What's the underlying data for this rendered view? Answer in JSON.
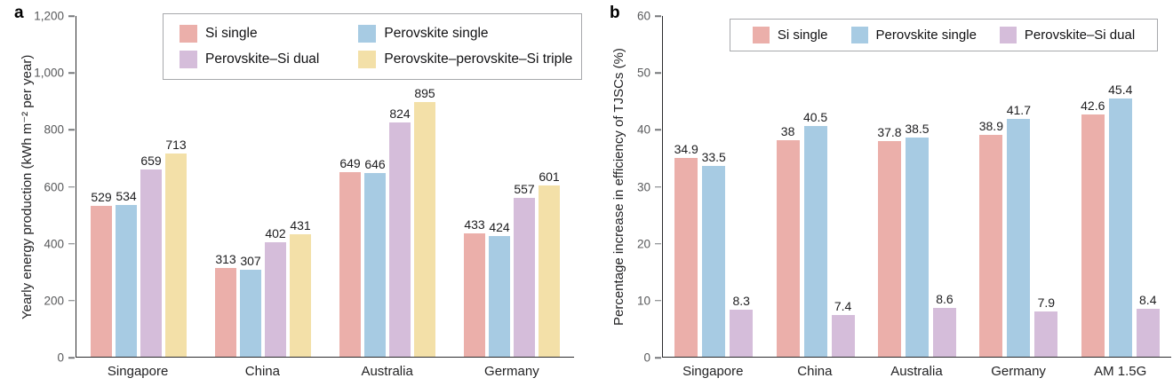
{
  "chart_data": [
    {
      "type": "bar",
      "panel_label": "a",
      "title": "",
      "xlabel": "",
      "ylabel": "Yearly energy production (kWh m⁻² per year)",
      "categories": [
        "Singapore",
        "China",
        "Australia",
        "Germany"
      ],
      "series": [
        {
          "name": "Si single",
          "color": "#EBAFAA",
          "values": [
            529,
            313,
            649,
            433
          ]
        },
        {
          "name": "Perovskite single",
          "color": "#A7CBE3",
          "values": [
            534,
            307,
            646,
            424
          ]
        },
        {
          "name": "Perovskite–Si dual",
          "color": "#D5BDDA",
          "values": [
            659,
            402,
            824,
            557
          ]
        },
        {
          "name": "Perovskite–perovskite–Si triple",
          "color": "#F3E0A8",
          "values": [
            713,
            431,
            895,
            601
          ]
        }
      ],
      "ylim": [
        0,
        1200
      ],
      "yticks": [
        0,
        200,
        400,
        600,
        800,
        1000,
        1200
      ],
      "ytick_labels": [
        "0",
        "200",
        "400",
        "600",
        "800",
        "1,000",
        "1,200"
      ],
      "grid": false,
      "value_labels": true,
      "legend_position": "top",
      "legend_layout": "grid-2col"
    },
    {
      "type": "bar",
      "panel_label": "b",
      "title": "",
      "xlabel": "",
      "ylabel": "Percentage increase in efficiency of TJSCs (%)",
      "categories": [
        "Singapore",
        "China",
        "Australia",
        "Germany",
        "AM 1.5G"
      ],
      "series": [
        {
          "name": "Si single",
          "color": "#EBAFAA",
          "values": [
            34.9,
            38,
            37.8,
            38.9,
            42.6
          ]
        },
        {
          "name": "Perovskite single",
          "color": "#A7CBE3",
          "values": [
            33.5,
            40.5,
            38.5,
            41.7,
            45.4
          ]
        },
        {
          "name": "Perovskite–Si dual",
          "color": "#D5BDDA",
          "values": [
            8.3,
            7.4,
            8.6,
            7.9,
            8.4
          ]
        }
      ],
      "ylim": [
        0,
        60
      ],
      "yticks": [
        0,
        10,
        20,
        30,
        40,
        50,
        60
      ],
      "ytick_labels": [
        "0",
        "10",
        "20",
        "30",
        "40",
        "50",
        "60"
      ],
      "grid": false,
      "value_labels": true,
      "legend_position": "top",
      "legend_layout": "row"
    }
  ],
  "colors": {
    "axis_line": "#2b2b2d",
    "tick_mark": "#77787b",
    "tick_label": "#58595b",
    "value_label": "#1d1d1f",
    "legend_border": "#a7a9ac"
  }
}
